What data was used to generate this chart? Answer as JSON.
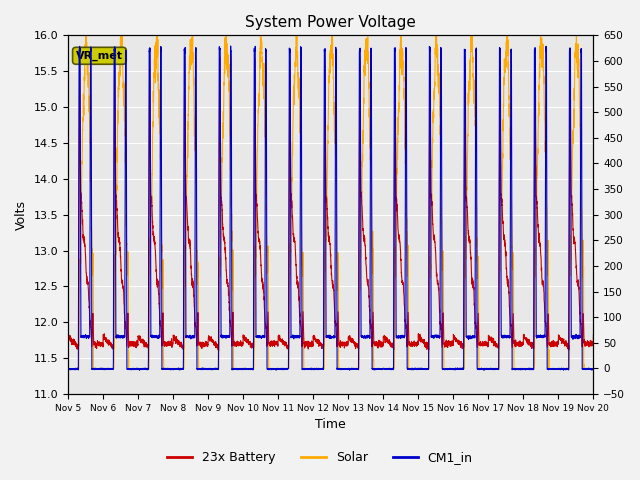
{
  "title": "System Power Voltage",
  "xlabel": "Time",
  "ylabel_left": "Volts",
  "ylim_left": [
    11.0,
    16.0
  ],
  "ylim_right": [
    -50,
    650
  ],
  "bg_color": "#e8e8e8",
  "fig_color": "#f2f2f2",
  "vr_met_label": "VR_met",
  "vr_met_color": "#cccc00",
  "grid_color": "#ffffff",
  "colors": {
    "battery": "#cc0000",
    "solar": "#ffaa00",
    "cm1_in": "#0000cc"
  },
  "legend_labels": [
    "23x Battery",
    "Solar",
    "CM1_in"
  ],
  "x_tick_labels": [
    "Nov 5",
    "Nov 6",
    "Nov 7",
    "Nov 8",
    "Nov 9Nov 10",
    "Nov 11",
    "Nov 12",
    "Nov 13",
    "Nov 14",
    "Nov 15",
    "Nov 16",
    "Nov 17",
    "Nov 18",
    "Nov 19",
    "Nov 20"
  ]
}
